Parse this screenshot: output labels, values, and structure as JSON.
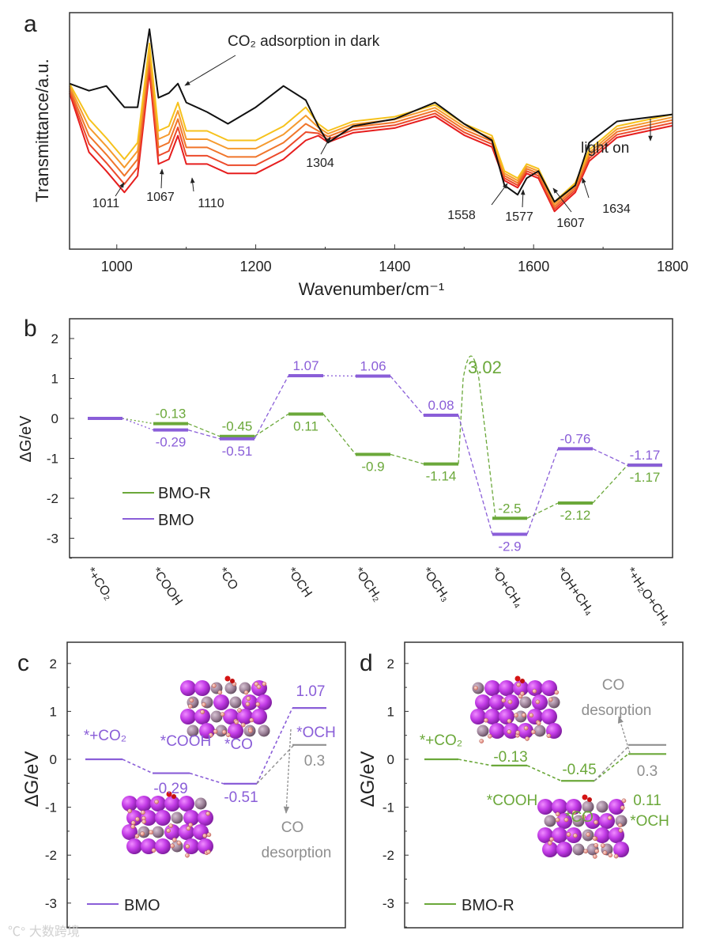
{
  "watermark": "大数跨境",
  "colors": {
    "bmo": "#8a5ed8",
    "bmo_r": "#6ba83a",
    "desorption": "#8f8f8f",
    "spectra": [
      "#111111",
      "#f6c21c",
      "#f59a2e",
      "#f0752a",
      "#ec4a2a",
      "#e61e1e"
    ]
  },
  "chart_data": [
    {
      "panel": "a",
      "type": "line",
      "xlabel": "Wavenumber/cm⁻¹",
      "ylabel": "Transmittance/a.u.",
      "xlim": [
        932,
        1800
      ],
      "ylim": [
        0,
        1
      ],
      "xticks": [
        1000,
        1200,
        1400,
        1600,
        1800
      ],
      "x": [
        932,
        960,
        985,
        1011,
        1030,
        1047,
        1060,
        1075,
        1088,
        1100,
        1130,
        1160,
        1200,
        1240,
        1272,
        1290,
        1304,
        1340,
        1400,
        1458,
        1500,
        1540,
        1558,
        1577,
        1590,
        1607,
        1630,
        1660,
        1680,
        1720,
        1800
      ],
      "series": [
        {
          "name": "CO2 adsorption in dark",
          "values": [
            0.7,
            0.67,
            0.69,
            0.6,
            0.6,
            0.93,
            0.64,
            0.66,
            0.7,
            0.62,
            0.58,
            0.53,
            0.6,
            0.69,
            0.63,
            0.52,
            0.45,
            0.52,
            0.55,
            0.62,
            0.53,
            0.46,
            0.27,
            0.23,
            0.3,
            0.33,
            0.2,
            0.27,
            0.45,
            0.54,
            0.57
          ]
        },
        {
          "name": "light on 1",
          "values": [
            0.7,
            0.55,
            0.47,
            0.38,
            0.45,
            0.87,
            0.5,
            0.52,
            0.62,
            0.5,
            0.5,
            0.46,
            0.46,
            0.52,
            0.6,
            0.53,
            0.5,
            0.54,
            0.56,
            0.61,
            0.53,
            0.48,
            0.33,
            0.3,
            0.36,
            0.34,
            0.2,
            0.28,
            0.42,
            0.52,
            0.57
          ]
        },
        {
          "name": "light on 2",
          "values": [
            0.69,
            0.515,
            0.435,
            0.345,
            0.415,
            0.84,
            0.465,
            0.485,
            0.585,
            0.465,
            0.465,
            0.425,
            0.425,
            0.485,
            0.565,
            0.515,
            0.488,
            0.528,
            0.548,
            0.598,
            0.518,
            0.468,
            0.32,
            0.29,
            0.35,
            0.33,
            0.19,
            0.27,
            0.408,
            0.508,
            0.558
          ]
        },
        {
          "name": "light on 3",
          "values": [
            0.68,
            0.48,
            0.4,
            0.31,
            0.38,
            0.81,
            0.43,
            0.45,
            0.55,
            0.43,
            0.43,
            0.39,
            0.39,
            0.45,
            0.53,
            0.5,
            0.476,
            0.516,
            0.536,
            0.586,
            0.506,
            0.456,
            0.31,
            0.28,
            0.34,
            0.32,
            0.18,
            0.26,
            0.396,
            0.496,
            0.546
          ]
        },
        {
          "name": "light on 4",
          "values": [
            0.67,
            0.445,
            0.365,
            0.275,
            0.345,
            0.78,
            0.395,
            0.415,
            0.515,
            0.395,
            0.395,
            0.355,
            0.355,
            0.415,
            0.495,
            0.49,
            0.464,
            0.504,
            0.524,
            0.574,
            0.494,
            0.444,
            0.3,
            0.27,
            0.33,
            0.31,
            0.17,
            0.25,
            0.384,
            0.484,
            0.534
          ]
        },
        {
          "name": "light on 5",
          "values": [
            0.66,
            0.41,
            0.33,
            0.24,
            0.31,
            0.75,
            0.36,
            0.38,
            0.48,
            0.36,
            0.36,
            0.32,
            0.32,
            0.38,
            0.46,
            0.48,
            0.452,
            0.492,
            0.512,
            0.562,
            0.482,
            0.432,
            0.29,
            0.26,
            0.32,
            0.3,
            0.16,
            0.24,
            0.372,
            0.472,
            0.522
          ]
        }
      ],
      "annotations": {
        "dark": "CO₂ adsorption in dark",
        "light": "light on",
        "peaks": [
          "1011",
          "1067",
          "1110",
          "1304",
          "1558",
          "1577",
          "1607",
          "1634"
        ]
      }
    },
    {
      "panel": "b",
      "type": "line",
      "ylabel": "ΔG/eV",
      "ylim": [
        -3.5,
        2.5
      ],
      "yticks": [
        2,
        1,
        0,
        -1,
        -2,
        -3
      ],
      "categories": [
        "*+CO₂",
        "*COOH",
        "*CO",
        "*OCH",
        "*OCH₂",
        "*OCH₃",
        "*O+CH₄",
        "*OH+CH₄",
        "*+H₂O+CH₄"
      ],
      "series": [
        {
          "name": "BMO-R",
          "values": [
            0,
            -0.13,
            -0.45,
            0.11,
            -0.9,
            -1.14,
            -2.5,
            -2.12,
            -1.17
          ],
          "labels": [
            "",
            "-0.13",
            "-0.45",
            "0.11",
            "-0.9",
            "-1.14",
            "-2.5",
            "-2.12",
            "-1.17"
          ]
        },
        {
          "name": "BMO",
          "values": [
            0,
            -0.29,
            -0.51,
            1.07,
            1.06,
            0.08,
            -2.9,
            -0.76,
            -1.17
          ],
          "labels": [
            "",
            "-0.29",
            "-0.51",
            "1.07",
            "1.06",
            "0.08",
            "-2.9",
            "-0.76",
            "-1.17"
          ]
        }
      ],
      "barrier": {
        "series": "BMO-R",
        "between": [
          "*OCH₃",
          "*O+CH₄"
        ],
        "value": 3.02,
        "label": "3.02"
      },
      "legend": [
        "BMO-R",
        "BMO"
      ],
      "legend_position": "bottom-left"
    },
    {
      "panel": "c",
      "type": "line",
      "ylabel": "ΔG/eV",
      "ylim": [
        -3.5,
        2.45
      ],
      "yticks": [
        2,
        1,
        0,
        -1,
        -2,
        -3
      ],
      "series": [
        {
          "name": "BMO",
          "steps": [
            "*+CO₂",
            "*COOH",
            "*CO",
            "*OCH"
          ],
          "values": [
            0,
            -0.29,
            -0.51,
            1.07
          ],
          "labels": [
            "",
            "-0.29",
            "-0.51",
            "1.07"
          ]
        },
        {
          "name": "CO desorption",
          "steps": [
            "*CO",
            "CO desorption"
          ],
          "values": [
            -0.51,
            0.3
          ],
          "labels": [
            "",
            "0.3"
          ]
        }
      ],
      "annotation": "CO desorption",
      "legend": [
        "BMO"
      ],
      "legend_position": "bottom-left"
    },
    {
      "panel": "d",
      "type": "line",
      "ylabel": "ΔG/eV",
      "ylim": [
        -3.5,
        2.45
      ],
      "yticks": [
        2,
        1,
        0,
        -1,
        -2,
        -3
      ],
      "series": [
        {
          "name": "BMO-R",
          "steps": [
            "*+CO₂",
            "*COOH",
            "*CO",
            "*OCH"
          ],
          "values": [
            0,
            -0.13,
            -0.45,
            0.11
          ],
          "labels": [
            "",
            "-0.13",
            "-0.45",
            "0.11"
          ]
        },
        {
          "name": "CO desorption",
          "steps": [
            "*CO",
            "CO desorption"
          ],
          "values": [
            -0.45,
            0.3
          ],
          "labels": [
            "",
            "0.3"
          ]
        }
      ],
      "annotation": "CO desorption",
      "legend": [
        "BMO-R"
      ],
      "legend_position": "bottom-left"
    }
  ]
}
